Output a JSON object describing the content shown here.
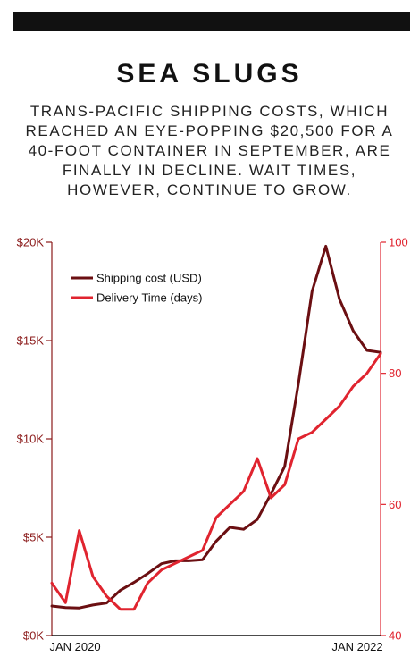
{
  "header": {
    "title": "SEA SLUGS",
    "subtitle": "TRANS-PACIFIC SHIPPING COSTS, WHICH REACHED AN EYE-POPPING $20,500 FOR A 40-FOOT CONTAINER IN SEPTEMBER, ARE FINALLY IN DECLINE. WAIT TIMES, HOWEVER, CONTINUE TO GROW."
  },
  "colors": {
    "shipping": "#6b0f12",
    "delivery": "#e0242f",
    "left_axis": "#8b1a1a",
    "right_axis": "#e0242f"
  },
  "chart_data": {
    "type": "line",
    "title": "SEA SLUGS",
    "x_tick_labels": [
      "JAN 2020",
      "JAN 2022"
    ],
    "left_axis": {
      "ylim": [
        0,
        20000
      ],
      "ticks": [
        "$0K",
        "$5K",
        "$10K",
        "$15K",
        "$20K"
      ]
    },
    "right_axis": {
      "ylim": [
        40,
        100
      ],
      "ticks": [
        "40",
        "60",
        "80",
        "100"
      ]
    },
    "legend_position": "top-left",
    "grid": false,
    "series": [
      {
        "name": "Shipping cost (USD)",
        "axis": "left",
        "values": [
          1500,
          1420,
          1400,
          1550,
          1650,
          2300,
          2700,
          3150,
          3650,
          3800,
          3800,
          3850,
          4800,
          5500,
          5400,
          5900,
          7200,
          8600,
          12800,
          17500,
          19800,
          17100,
          15500,
          14500,
          14400
        ]
      },
      {
        "name": "Delivery Time (days)",
        "axis": "right",
        "values": [
          48,
          45,
          56,
          49,
          46,
          44,
          44,
          48,
          50,
          51,
          52,
          53,
          58,
          60,
          62,
          67,
          61,
          63,
          70,
          71,
          73,
          75,
          78,
          80,
          83
        ]
      }
    ]
  }
}
